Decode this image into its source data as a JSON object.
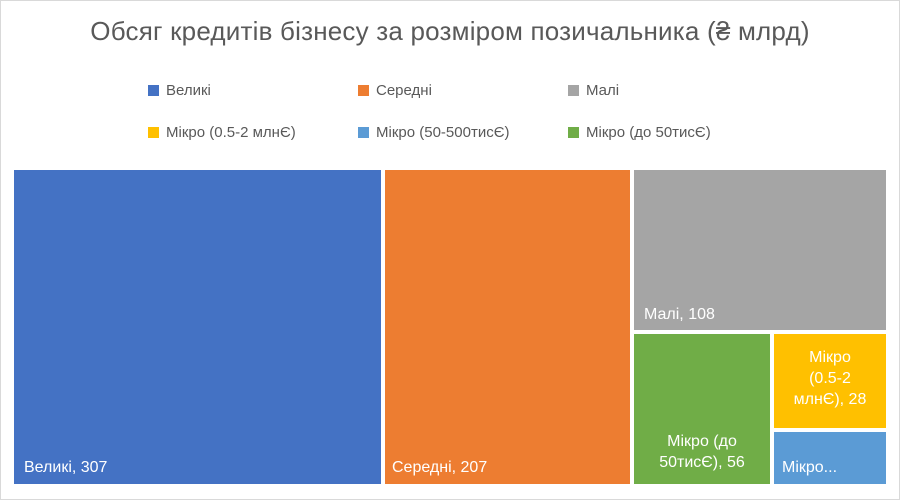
{
  "chart_data": {
    "type": "treemap",
    "title": "Обсяг кредитів бізнесу за розміром позичальника (₴ млрд)",
    "legend": [
      "Великі",
      "Середні",
      "Малі",
      "Мікро (0.5-2 млнЄ)",
      "Мікро (50-500тисЄ)",
      "Мікро (до 50тисЄ)"
    ],
    "legend_position": "top",
    "series": [
      {
        "name": "Великі",
        "value": 307,
        "color": "#4472C4",
        "label_lines": [
          "Великі, 307"
        ]
      },
      {
        "name": "Середні",
        "value": 207,
        "color": "#ED7D31",
        "label_lines": [
          "Середні, 207"
        ]
      },
      {
        "name": "Малі",
        "value": 108,
        "color": "#A5A5A5",
        "label_lines": [
          "Малі, 108"
        ]
      },
      {
        "name": "Мікро (до 50тисЄ)",
        "value": 56,
        "color": "#70AD47",
        "label_lines": [
          "Мікро (до",
          "50тисЄ), 56"
        ]
      },
      {
        "name": "Мікро (0.5-2 млнЄ)",
        "value": 28,
        "color": "#FFC000",
        "label_lines": [
          "Мікро",
          "(0.5-2",
          "млнЄ), 28"
        ]
      },
      {
        "name": "Мікро (50-500тисЄ)",
        "value": null,
        "color": "#5B9BD5",
        "label_lines": [
          "Мікро..."
        ]
      }
    ]
  }
}
